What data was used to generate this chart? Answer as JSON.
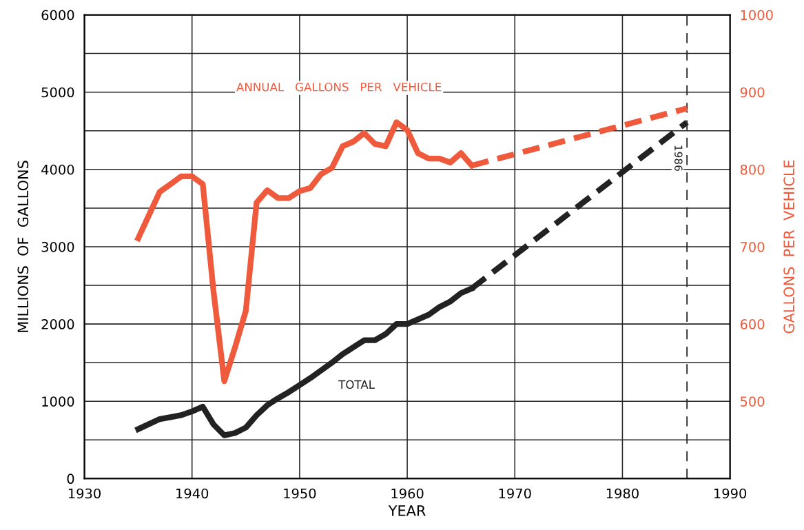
{
  "chart_data": {
    "type": "line",
    "xlabel": "YEAR",
    "ylabel": "MILLIONS  OF  GALLONS",
    "y2label": "GALLONS  PER  VEHICLE",
    "xlim": [
      1930,
      1990
    ],
    "xticks": [
      1930,
      1940,
      1950,
      1960,
      1970,
      1980,
      1990
    ],
    "ylim": [
      0,
      6000
    ],
    "yticks": [
      0,
      {
        "value": 500,
        "label": null
      },
      1000,
      {
        "value": 1500,
        "label": null
      },
      2000,
      {
        "value": 2500,
        "label": null
      },
      3000,
      {
        "value": 3500,
        "label": null
      },
      4000,
      {
        "value": 4500,
        "label": null
      },
      5000,
      {
        "value": 5500,
        "label": null
      },
      6000
    ],
    "y2lim": [
      400,
      1000
    ],
    "y2ticks": [
      500,
      600,
      700,
      800,
      900,
      1000
    ],
    "grid": true,
    "legend": false,
    "series": [
      {
        "name": "TOTAL",
        "color": "#222222",
        "line_style": "solid",
        "x": [
          1935,
          1937,
          1939,
          1940,
          1941,
          1942,
          1943,
          1944,
          1945,
          1946,
          1947,
          1948,
          1949,
          1950,
          1951,
          1952,
          1953,
          1954,
          1955,
          1956,
          1957,
          1958,
          1959,
          1960,
          1961,
          1962,
          1963,
          1964,
          1965,
          1966
        ],
        "values": [
          640,
          770,
          820,
          870,
          930,
          700,
          560,
          590,
          660,
          820,
          950,
          1040,
          1120,
          1210,
          1300,
          1400,
          1500,
          1610,
          1700,
          1790,
          1790,
          1870,
          2000,
          2000,
          2060,
          2120,
          2220,
          2290,
          2400,
          2460
        ]
      },
      {
        "color": "#222222",
        "line_style": "dashed",
        "x": [
          1966,
          1986
        ],
        "values": [
          2460,
          4610
        ]
      },
      {
        "name": "ANNUAL   GALLONS   PER   VEHICLE",
        "color": "#f05a3c",
        "line_style": "solid",
        "axis": "y2",
        "x": [
          1935,
          1937,
          1939,
          1940,
          1941,
          1942,
          1943,
          1944,
          1945,
          1946,
          1947,
          1948,
          1949,
          1950,
          1951,
          1952,
          1953,
          1954,
          1955,
          1956,
          1957,
          1958,
          1959,
          1960,
          1961,
          1962,
          1963,
          1964,
          1965,
          1966
        ],
        "values": [
          711,
          771,
          791,
          791,
          781,
          642,
          526,
          570,
          617,
          757,
          773,
          763,
          763,
          772,
          776,
          794,
          802,
          830,
          836,
          847,
          833,
          830,
          861,
          851,
          821,
          814,
          814,
          809,
          821,
          805
        ]
      },
      {
        "color": "#f05a3c",
        "line_style": "dashed",
        "axis": "y2",
        "x": [
          1966,
          1986
        ],
        "values": [
          805,
          879
        ]
      }
    ],
    "ref_lines": [
      {
        "axis": "x",
        "value": 1986,
        "label": "1986",
        "color": "#222222",
        "line_style": "dashed"
      }
    ]
  }
}
